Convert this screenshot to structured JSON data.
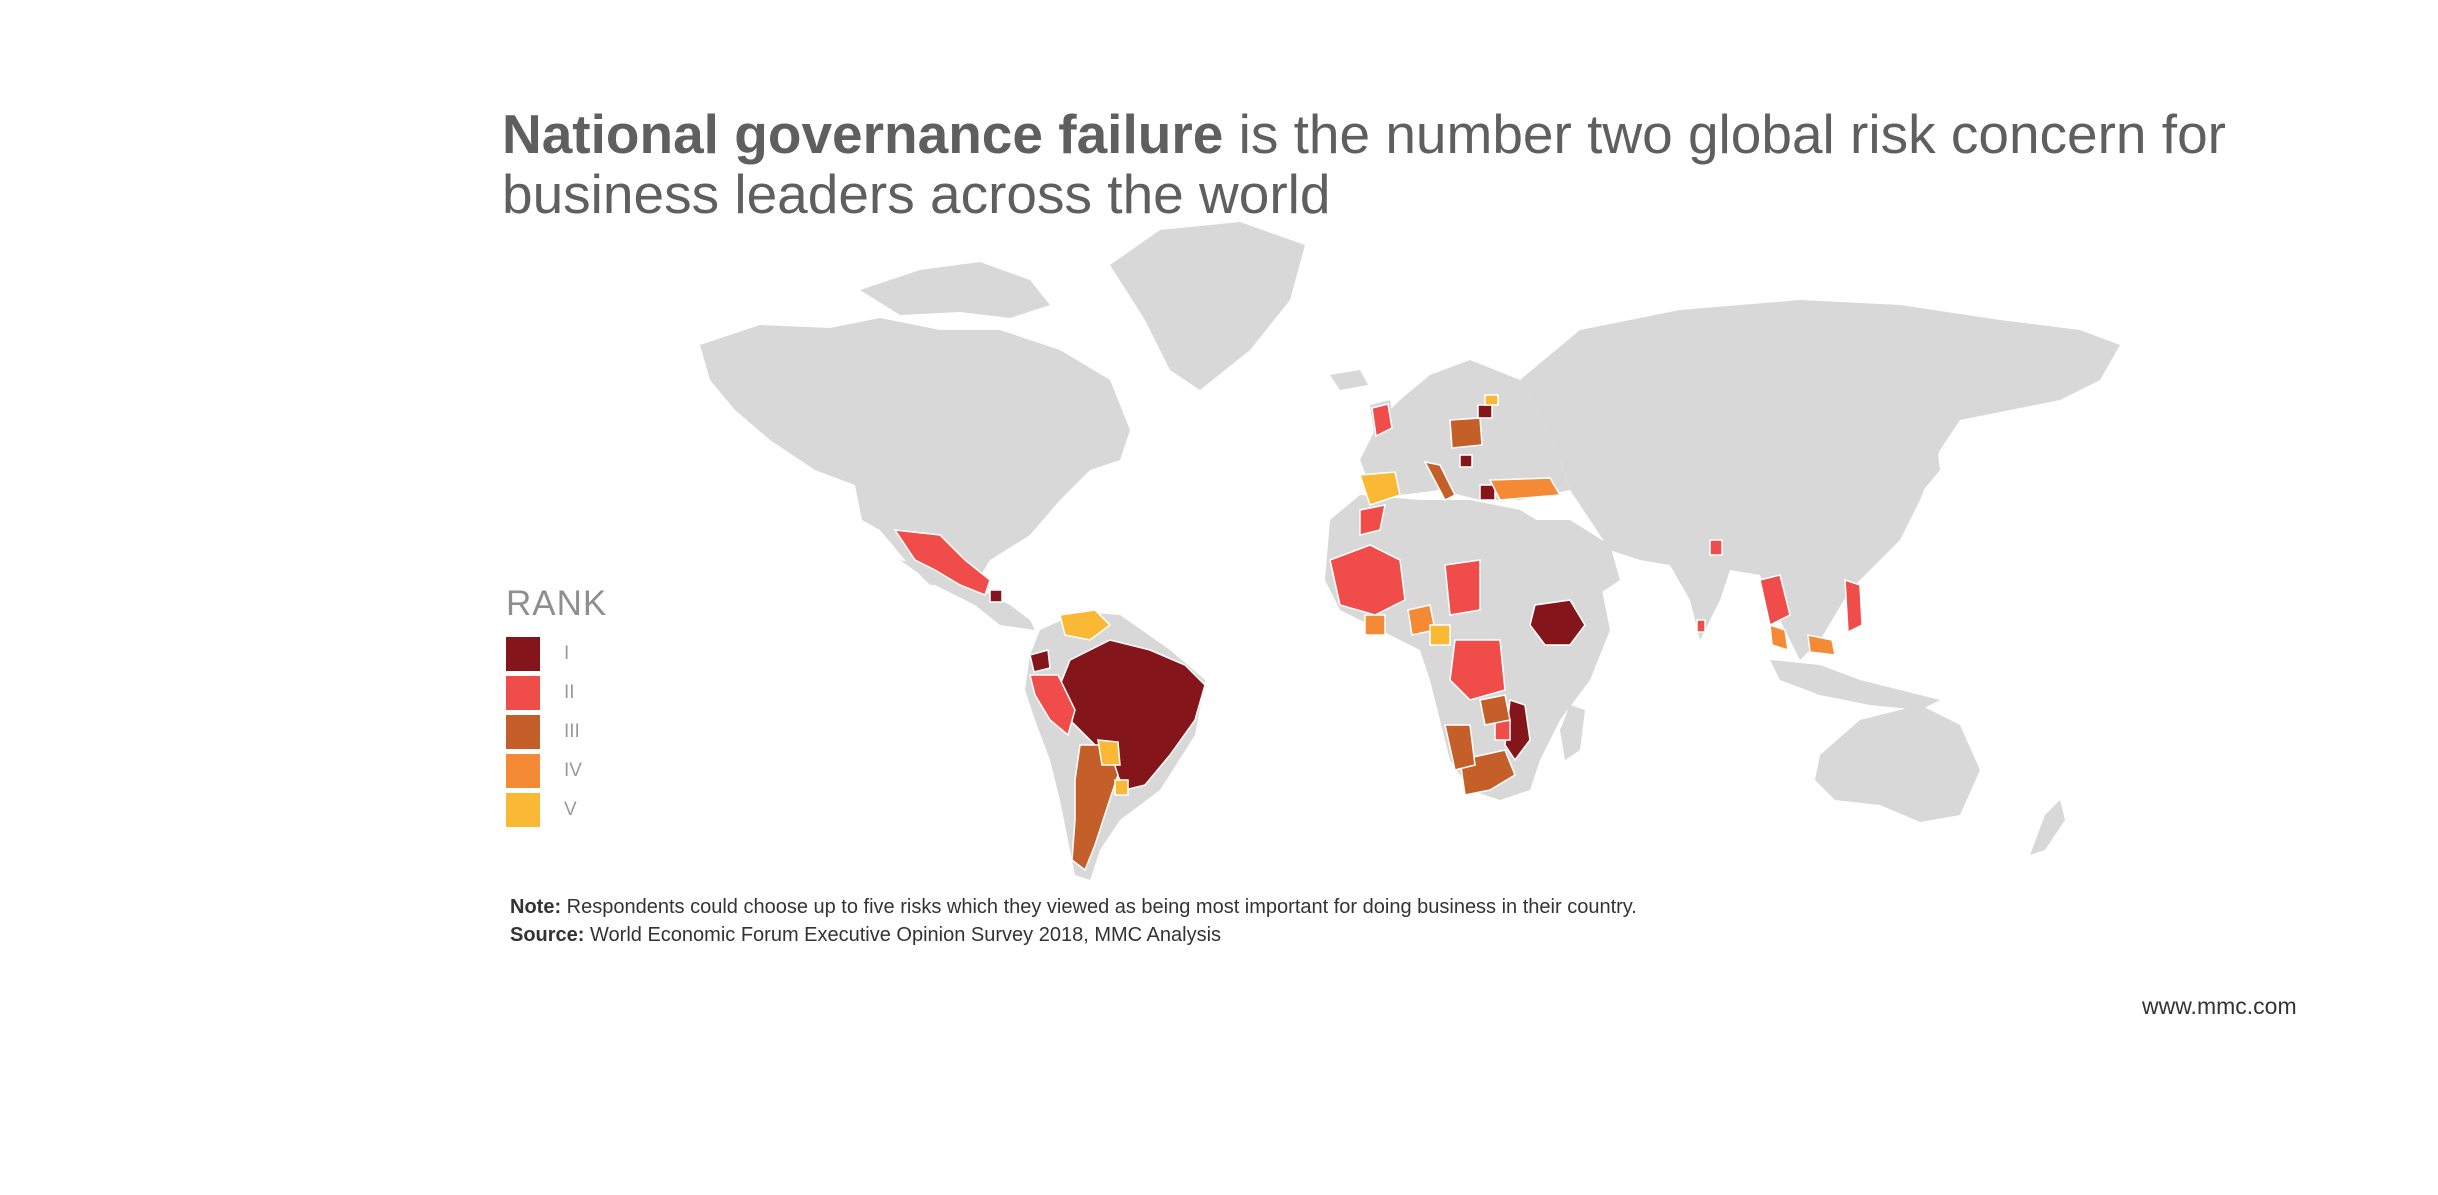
{
  "headline": {
    "bold": "National governance failure",
    "rest": " is the number two global risk concern for business leaders across the world"
  },
  "colors": {
    "land": "#d8d8d8",
    "rank_1": "#84161b",
    "rank_2": "#ef4c4a",
    "rank_3": "#c55f29",
    "rank_4": "#f58a36",
    "rank_5": "#f9b935"
  },
  "legend": {
    "title": "RANK",
    "items": [
      {
        "label": "I",
        "color": "#84161b"
      },
      {
        "label": "II",
        "color": "#ef4c4a"
      },
      {
        "label": "III",
        "color": "#c55f29"
      },
      {
        "label": "IV",
        "color": "#f58a36"
      },
      {
        "label": "V",
        "color": "#f9b935"
      }
    ]
  },
  "note": {
    "label": "Note:",
    "text": " Respondents could choose up to five risks which they viewed as being most important for doing business in their country."
  },
  "source": {
    "label": "Source:",
    "text": " World Economic Forum Executive Opinion Survey 2018, MMC Analysis"
  },
  "website": "www.mmc.com"
}
